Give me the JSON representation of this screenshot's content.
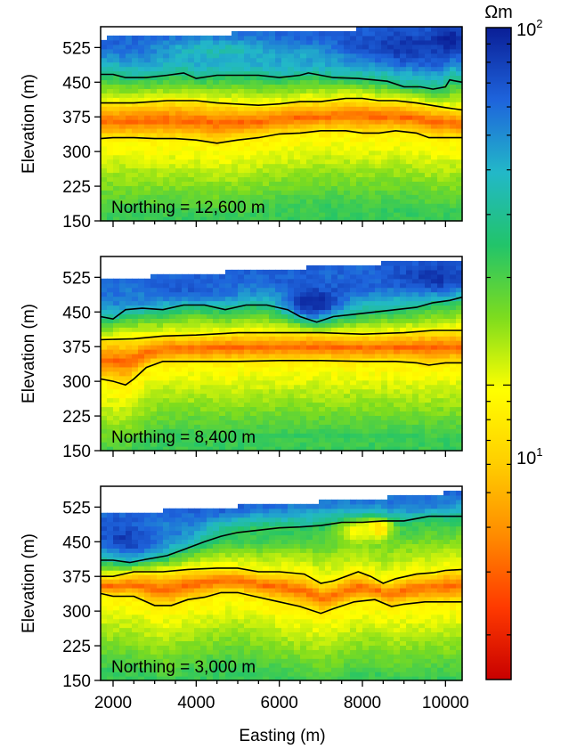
{
  "chart_data": {
    "type": "heatmap",
    "xlabel": "Easting (m)",
    "ylabel": "Elevation (m)",
    "xlim": [
      1700,
      10400
    ],
    "ylim": [
      150,
      570
    ],
    "xticks": [
      2000,
      4000,
      6000,
      8000,
      10000
    ],
    "xtick_labels": [
      "2000",
      "4000",
      "6000",
      "8000",
      "10000"
    ],
    "yticks": [
      150,
      225,
      300,
      375,
      450,
      525
    ],
    "ytick_labels": [
      "150",
      "225",
      "300",
      "375",
      "450",
      "525"
    ],
    "colorbar": {
      "unit": "Ωm",
      "scale": "log",
      "range": [
        1.5,
        100
      ],
      "tick_base": "10",
      "tick_exponents": [
        "1",
        "2"
      ],
      "colors": [
        "#c80000",
        "#ff3a00",
        "#ff8c00",
        "#ffcf00",
        "#ffff00",
        "#7ddc1e",
        "#22c46a",
        "#22b8c8",
        "#1e64dc",
        "#0a1e96"
      ]
    },
    "panels": [
      {
        "label": "Northing = 12,600 m",
        "surface": [
          [
            1700,
            545
          ],
          [
            2500,
            550
          ],
          [
            4000,
            552
          ],
          [
            5500,
            558
          ],
          [
            7000,
            563
          ],
          [
            8500,
            567
          ],
          [
            10400,
            570
          ]
        ],
        "contours": [
          [
            [
              1700,
              467
            ],
            [
              2000,
              467
            ],
            [
              2300,
              460
            ],
            [
              2800,
              460
            ],
            [
              3300,
              465
            ],
            [
              3700,
              470
            ],
            [
              4000,
              458
            ],
            [
              4500,
              465
            ],
            [
              5000,
              465
            ],
            [
              5500,
              465
            ],
            [
              6000,
              460
            ],
            [
              6500,
              465
            ],
            [
              6700,
              470
            ],
            [
              7300,
              460
            ],
            [
              7900,
              458
            ],
            [
              8600,
              452
            ],
            [
              9000,
              440
            ],
            [
              9400,
              440
            ],
            [
              9700,
              435
            ],
            [
              10000,
              440
            ],
            [
              10100,
              455
            ],
            [
              10400,
              450
            ]
          ],
          [
            [
              1700,
              405
            ],
            [
              2500,
              405
            ],
            [
              3300,
              410
            ],
            [
              4000,
              410
            ],
            [
              4500,
              405
            ],
            [
              5500,
              400
            ],
            [
              6000,
              403
            ],
            [
              6500,
              408
            ],
            [
              7000,
              408
            ],
            [
              7600,
              415
            ],
            [
              8000,
              415
            ],
            [
              8400,
              410
            ],
            [
              8800,
              410
            ],
            [
              9300,
              405
            ],
            [
              10000,
              395
            ],
            [
              10400,
              390
            ]
          ],
          [
            [
              1700,
              328
            ],
            [
              2000,
              330
            ],
            [
              2500,
              330
            ],
            [
              3000,
              328
            ],
            [
              3500,
              328
            ],
            [
              4000,
              325
            ],
            [
              4500,
              318
            ],
            [
              5000,
              325
            ],
            [
              5500,
              330
            ],
            [
              6000,
              338
            ],
            [
              6500,
              340
            ],
            [
              7000,
              345
            ],
            [
              7600,
              345
            ],
            [
              8000,
              340
            ],
            [
              8400,
              340
            ],
            [
              8800,
              345
            ],
            [
              9300,
              340
            ],
            [
              9600,
              330
            ],
            [
              10400,
              330
            ]
          ]
        ],
        "blobs": [
          {
            "x": 9000,
            "y": 530,
            "sx": 1400,
            "sy": 30,
            "v": 85
          },
          {
            "x": 10100,
            "y": 545,
            "sx": 400,
            "sy": 25,
            "v": 95
          },
          {
            "x": 6600,
            "y": 505,
            "sx": 1200,
            "sy": 25,
            "v": 45
          },
          {
            "x": 4500,
            "y": 520,
            "sx": 1500,
            "sy": 25,
            "v": 35
          }
        ]
      },
      {
        "label": "Northing = 8,400 m",
        "surface": [
          [
            1700,
            520
          ],
          [
            2500,
            525
          ],
          [
            4000,
            533
          ],
          [
            5500,
            540
          ],
          [
            7000,
            548
          ],
          [
            8500,
            556
          ],
          [
            10400,
            565
          ]
        ],
        "contours": [
          [
            [
              1700,
              440
            ],
            [
              2000,
              435
            ],
            [
              2300,
              455
            ],
            [
              2700,
              458
            ],
            [
              3200,
              455
            ],
            [
              3700,
              465
            ],
            [
              4200,
              465
            ],
            [
              4700,
              455
            ],
            [
              5200,
              465
            ],
            [
              5700,
              465
            ],
            [
              6200,
              455
            ],
            [
              6500,
              440
            ],
            [
              6900,
              428
            ],
            [
              7300,
              440
            ],
            [
              7800,
              445
            ],
            [
              8300,
              450
            ],
            [
              8800,
              455
            ],
            [
              9300,
              460
            ],
            [
              9700,
              470
            ],
            [
              10100,
              475
            ],
            [
              10400,
              482
            ]
          ],
          [
            [
              1700,
              390
            ],
            [
              2500,
              392
            ],
            [
              3200,
              398
            ],
            [
              4000,
              400
            ],
            [
              5000,
              405
            ],
            [
              6000,
              405
            ],
            [
              7000,
              405
            ],
            [
              8000,
              402
            ],
            [
              9000,
              405
            ],
            [
              9700,
              410
            ],
            [
              10400,
              410
            ]
          ],
          [
            [
              1700,
              305
            ],
            [
              2000,
              300
            ],
            [
              2300,
              292
            ],
            [
              2500,
              305
            ],
            [
              2800,
              330
            ],
            [
              3200,
              343
            ],
            [
              4000,
              343
            ],
            [
              5000,
              343
            ],
            [
              6000,
              345
            ],
            [
              7000,
              345
            ],
            [
              8000,
              343
            ],
            [
              8800,
              343
            ],
            [
              9300,
              340
            ],
            [
              9600,
              335
            ],
            [
              10000,
              340
            ],
            [
              10400,
              340
            ]
          ]
        ],
        "blobs": [
          {
            "x": 6800,
            "y": 470,
            "sx": 700,
            "sy": 30,
            "v": 95
          },
          {
            "x": 9800,
            "y": 525,
            "sx": 900,
            "sy": 35,
            "v": 85
          },
          {
            "x": 3800,
            "y": 500,
            "sx": 1500,
            "sy": 30,
            "v": 65
          },
          {
            "x": 2400,
            "y": 480,
            "sx": 700,
            "sy": 30,
            "v": 55
          }
        ]
      },
      {
        "label": "Northing = 3,000 m",
        "surface": [
          [
            1700,
            510
          ],
          [
            2500,
            513
          ],
          [
            4000,
            522
          ],
          [
            5500,
            530
          ],
          [
            7000,
            537
          ],
          [
            8500,
            545
          ],
          [
            9800,
            555
          ],
          [
            10400,
            560
          ]
        ],
        "contours": [
          [
            [
              1700,
              410
            ],
            [
              2000,
              410
            ],
            [
              2400,
              405
            ],
            [
              2800,
              412
            ],
            [
              3300,
              420
            ],
            [
              3600,
              430
            ],
            [
              3900,
              440
            ],
            [
              4200,
              450
            ],
            [
              4600,
              462
            ],
            [
              5000,
              470
            ],
            [
              5500,
              475
            ],
            [
              6000,
              480
            ],
            [
              6500,
              482
            ],
            [
              7000,
              485
            ],
            [
              7500,
              492
            ],
            [
              8000,
              492
            ],
            [
              8500,
              495
            ],
            [
              9000,
              495
            ],
            [
              9300,
              500
            ],
            [
              9600,
              505
            ],
            [
              10000,
              505
            ],
            [
              10400,
              505
            ]
          ],
          [
            [
              1700,
              375
            ],
            [
              2000,
              375
            ],
            [
              2500,
              385
            ],
            [
              3200,
              385
            ],
            [
              3800,
              390
            ],
            [
              4500,
              393
            ],
            [
              5000,
              393
            ],
            [
              5500,
              385
            ],
            [
              6000,
              385
            ],
            [
              6600,
              380
            ],
            [
              7000,
              360
            ],
            [
              7300,
              365
            ],
            [
              7600,
              375
            ],
            [
              7900,
              385
            ],
            [
              8200,
              375
            ],
            [
              8500,
              360
            ],
            [
              8800,
              370
            ],
            [
              9300,
              380
            ],
            [
              9700,
              383
            ],
            [
              10000,
              388
            ],
            [
              10400,
              390
            ]
          ],
          [
            [
              1700,
              338
            ],
            [
              2000,
              332
            ],
            [
              2500,
              332
            ],
            [
              3000,
              312
            ],
            [
              3400,
              312
            ],
            [
              3800,
              325
            ],
            [
              4200,
              330
            ],
            [
              4600,
              340
            ],
            [
              5000,
              340
            ],
            [
              5500,
              330
            ],
            [
              6000,
              320
            ],
            [
              6500,
              310
            ],
            [
              7000,
              295
            ],
            [
              7300,
              305
            ],
            [
              7800,
              320
            ],
            [
              8300,
              325
            ],
            [
              8700,
              310
            ],
            [
              9000,
              315
            ],
            [
              9500,
              320
            ],
            [
              10000,
              320
            ],
            [
              10400,
              320
            ]
          ]
        ],
        "blobs": [
          {
            "x": 2400,
            "y": 455,
            "sx": 650,
            "sy": 35,
            "v": 85
          },
          {
            "x": 3300,
            "y": 480,
            "sx": 800,
            "sy": 30,
            "v": 55
          },
          {
            "x": 9400,
            "y": 540,
            "sx": 1000,
            "sy": 25,
            "v": 60
          },
          {
            "x": 8400,
            "y": 480,
            "sx": 300,
            "sy": 20,
            "v": 6
          },
          {
            "x": 7900,
            "y": 475,
            "sx": 500,
            "sy": 25,
            "v": 9
          },
          {
            "x": 5500,
            "y": 465,
            "sx": 1100,
            "sy": 25,
            "v": 22
          }
        ]
      }
    ]
  }
}
